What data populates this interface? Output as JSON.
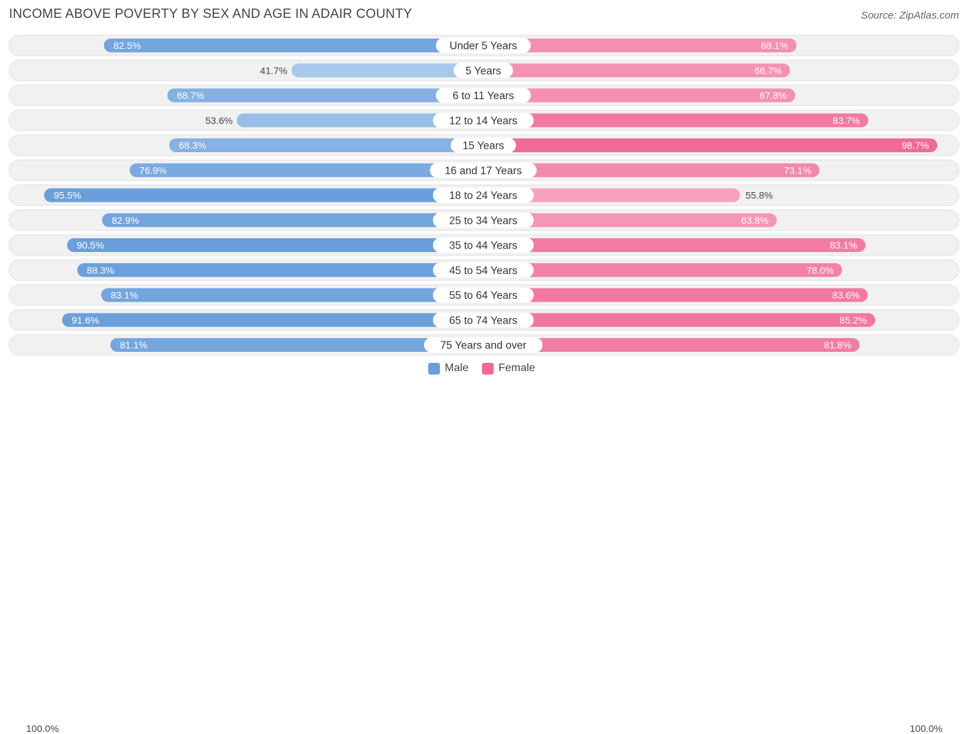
{
  "title": "INCOME ABOVE POVERTY BY SEX AND AGE IN ADAIR COUNTY",
  "source": "Source: ZipAtlas.com",
  "axis": {
    "left_label": "100.0%",
    "right_label": "100.0%"
  },
  "legend": {
    "male_label": "Male",
    "female_label": "Female"
  },
  "colors": {
    "male": "#6a9fdb",
    "male_light": "#a9c9ee",
    "female": "#f06a94",
    "female_light": "#f7aac4",
    "row_bg": "#f1f1f1"
  },
  "chart_data": {
    "type": "bar",
    "orientation": "horizontal-diverging",
    "categories": [
      "Under 5 Years",
      "5 Years",
      "6 to 11 Years",
      "12 to 14 Years",
      "15 Years",
      "16 and 17 Years",
      "18 to 24 Years",
      "25 to 34 Years",
      "35 to 44 Years",
      "45 to 54 Years",
      "55 to 64 Years",
      "65 to 74 Years",
      "75 Years and over"
    ],
    "series": [
      {
        "name": "Male",
        "values": [
          82.5,
          41.7,
          68.7,
          53.6,
          68.3,
          76.9,
          95.5,
          82.9,
          90.5,
          88.3,
          83.1,
          91.6,
          81.1
        ],
        "labels": [
          "82.5%",
          "41.7%",
          "68.7%",
          "53.6%",
          "68.3%",
          "76.9%",
          "95.5%",
          "82.9%",
          "90.5%",
          "88.3%",
          "83.1%",
          "91.6%",
          "81.1%"
        ]
      },
      {
        "name": "Female",
        "values": [
          68.1,
          66.7,
          67.8,
          83.7,
          98.7,
          73.1,
          55.8,
          63.8,
          83.1,
          78.0,
          83.6,
          85.2,
          81.8
        ],
        "labels": [
          "68.1%",
          "66.7%",
          "67.8%",
          "83.7%",
          "98.7%",
          "73.1%",
          "55.8%",
          "63.8%",
          "83.1%",
          "78.0%",
          "83.6%",
          "85.2%",
          "81.8%"
        ]
      }
    ],
    "xlim": [
      0,
      100
    ],
    "legend_position": "bottom-center"
  }
}
